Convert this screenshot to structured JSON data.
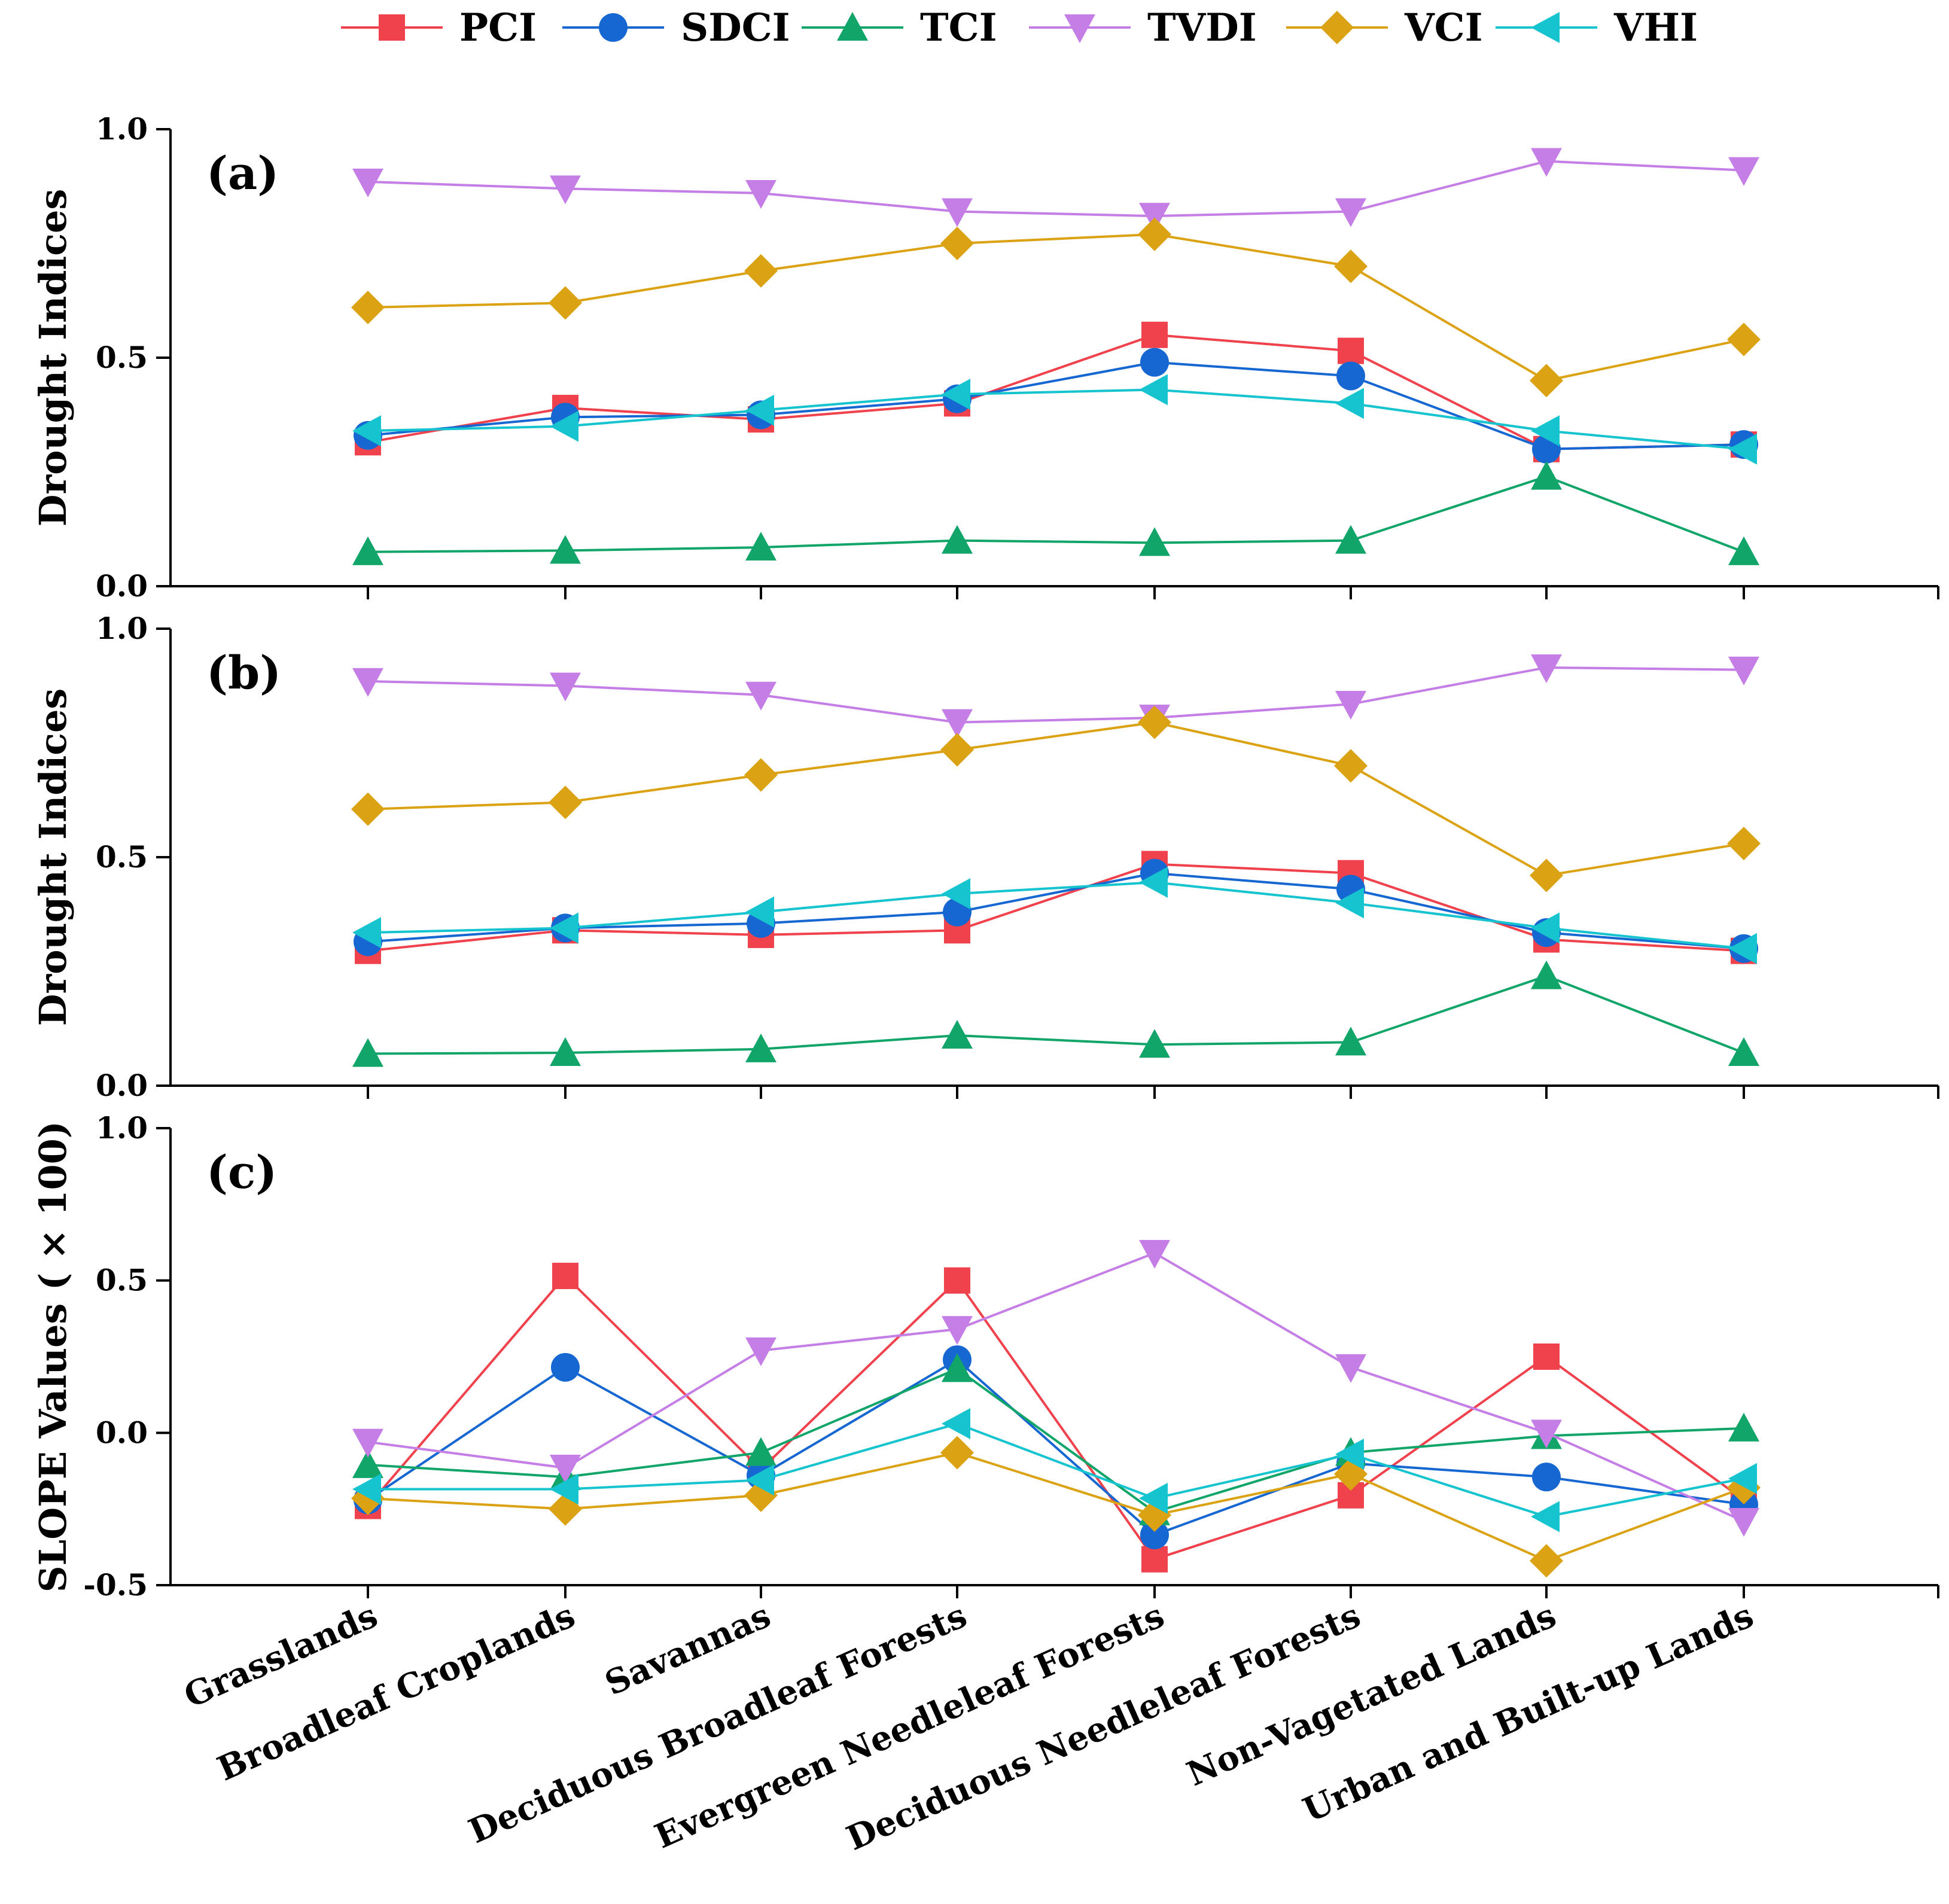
{
  "chart_data": {
    "type": "line",
    "categories": [
      "Grasslands",
      "Broadleaf Croplands",
      "Savannas",
      "Deciduous Broadleaf Forests",
      "Evergreen Needleleaf Forests",
      "Deciduous Needleleaf Forests",
      "Non-Vagetated Lands",
      "Urban and Built-up Lands"
    ],
    "legend": [
      {
        "name": "PCI",
        "color": "#f0424c",
        "marker": "square"
      },
      {
        "name": "SDCI",
        "color": "#1667d1",
        "marker": "circle"
      },
      {
        "name": "TCI",
        "color": "#12a56a",
        "marker": "triangle-up"
      },
      {
        "name": "TVDI",
        "color": "#c47ee6",
        "marker": "triangle-down"
      },
      {
        "name": "VCI",
        "color": "#dba213",
        "marker": "diamond"
      },
      {
        "name": "VHI",
        "color": "#16c4cf",
        "marker": "triangle-left"
      }
    ],
    "panels": [
      {
        "label": "(a)",
        "ylabel": "Drought Indices",
        "ylim": [
          0.0,
          1.0
        ],
        "yticks": [
          "0.0",
          "0.5",
          "1.0"
        ],
        "series": [
          {
            "name": "PCI",
            "values": [
              0.315,
              0.39,
              0.365,
              0.4,
              0.55,
              0.515,
              0.3,
              0.31
            ]
          },
          {
            "name": "SDCI",
            "values": [
              0.33,
              0.37,
              0.375,
              0.41,
              0.49,
              0.46,
              0.3,
              0.31
            ]
          },
          {
            "name": "TCI",
            "values": [
              0.075,
              0.078,
              0.085,
              0.1,
              0.095,
              0.1,
              0.24,
              0.075
            ]
          },
          {
            "name": "TVDI",
            "values": [
              0.885,
              0.87,
              0.86,
              0.82,
              0.81,
              0.82,
              0.93,
              0.91
            ]
          },
          {
            "name": "VCI",
            "values": [
              0.61,
              0.62,
              0.69,
              0.75,
              0.77,
              0.7,
              0.45,
              0.54
            ]
          },
          {
            "name": "VHI",
            "values": [
              0.34,
              0.35,
              0.385,
              0.42,
              0.43,
              0.4,
              0.34,
              0.3
            ]
          }
        ]
      },
      {
        "label": "(b)",
        "ylabel": "Drought Indices",
        "ylim": [
          0.0,
          1.0
        ],
        "yticks": [
          "0.0",
          "0.5",
          "1.0"
        ],
        "series": [
          {
            "name": "PCI",
            "values": [
              0.295,
              0.34,
              0.33,
              0.34,
              0.485,
              0.465,
              0.32,
              0.295
            ]
          },
          {
            "name": "SDCI",
            "values": [
              0.315,
              0.345,
              0.355,
              0.38,
              0.465,
              0.43,
              0.335,
              0.3
            ]
          },
          {
            "name": "TCI",
            "values": [
              0.07,
              0.072,
              0.08,
              0.11,
              0.09,
              0.095,
              0.24,
              0.072
            ]
          },
          {
            "name": "TVDI",
            "values": [
              0.885,
              0.875,
              0.855,
              0.795,
              0.805,
              0.835,
              0.915,
              0.91
            ]
          },
          {
            "name": "VCI",
            "values": [
              0.605,
              0.62,
              0.68,
              0.735,
              0.795,
              0.7,
              0.46,
              0.53
            ]
          },
          {
            "name": "VHI",
            "values": [
              0.335,
              0.345,
              0.38,
              0.42,
              0.445,
              0.4,
              0.345,
              0.3
            ]
          }
        ]
      },
      {
        "label": "(c)",
        "ylabel": "SLOPE Values ( × 100)",
        "ylim": [
          -0.5,
          1.0
        ],
        "yticks": [
          "-0.5",
          "0.0",
          "0.5",
          "1.0"
        ],
        "series": [
          {
            "name": "PCI",
            "values": [
              -0.24,
              0.515,
              -0.12,
              0.5,
              -0.415,
              -0.205,
              0.25,
              -0.22
            ]
          },
          {
            "name": "SDCI",
            "values": [
              -0.22,
              0.215,
              -0.14,
              0.24,
              -0.335,
              -0.1,
              -0.145,
              -0.235
            ]
          },
          {
            "name": "TCI",
            "values": [
              -0.105,
              -0.145,
              -0.065,
              0.21,
              -0.26,
              -0.065,
              -0.01,
              0.015
            ]
          },
          {
            "name": "TVDI",
            "values": [
              -0.03,
              -0.115,
              0.27,
              0.34,
              0.59,
              0.215,
              0.0,
              -0.29
            ]
          },
          {
            "name": "VCI",
            "values": [
              -0.215,
              -0.25,
              -0.205,
              -0.065,
              -0.27,
              -0.135,
              -0.42,
              -0.18
            ]
          },
          {
            "name": "VHI",
            "values": [
              -0.185,
              -0.185,
              -0.155,
              0.03,
              -0.215,
              -0.07,
              -0.275,
              -0.15
            ]
          }
        ]
      }
    ]
  }
}
